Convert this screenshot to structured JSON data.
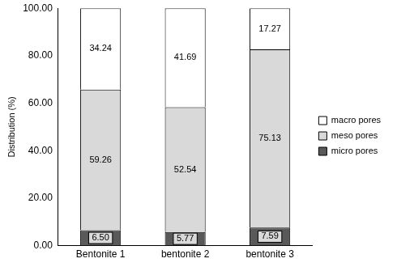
{
  "chart_data": {
    "type": "bar",
    "stacked": true,
    "y_label": "Distribution (%)",
    "categories": [
      "Bentonite 1",
      "bentonite 2",
      "bentonite 3"
    ],
    "series": [
      {
        "name": "micro pores",
        "color": "#595959",
        "values": [
          6.5,
          5.77,
          7.59
        ],
        "value_labels": [
          "6.50",
          "5.77",
          "7.59"
        ]
      },
      {
        "name": "meso pores",
        "color": "#d9d9d9",
        "values": [
          59.26,
          52.54,
          75.13
        ],
        "value_labels": [
          "59.26",
          "52.54",
          "75.13"
        ]
      },
      {
        "name": "macro pores",
        "color": "#ffffff",
        "values": [
          34.24,
          41.69,
          17.27
        ],
        "value_labels": [
          "34.24",
          "41.69",
          "17.27"
        ]
      }
    ],
    "ylim": [
      0,
      100
    ],
    "yticks": [
      {
        "value": 0,
        "label": "0.00"
      },
      {
        "value": 20,
        "label": "20.00"
      },
      {
        "value": 40,
        "label": "40.00"
      },
      {
        "value": 60,
        "label": "60.00"
      },
      {
        "value": 80,
        "label": "80.00"
      },
      {
        "value": 100,
        "label": "100.00"
      }
    ],
    "grid": false,
    "legend": "right",
    "data_labels": true
  }
}
